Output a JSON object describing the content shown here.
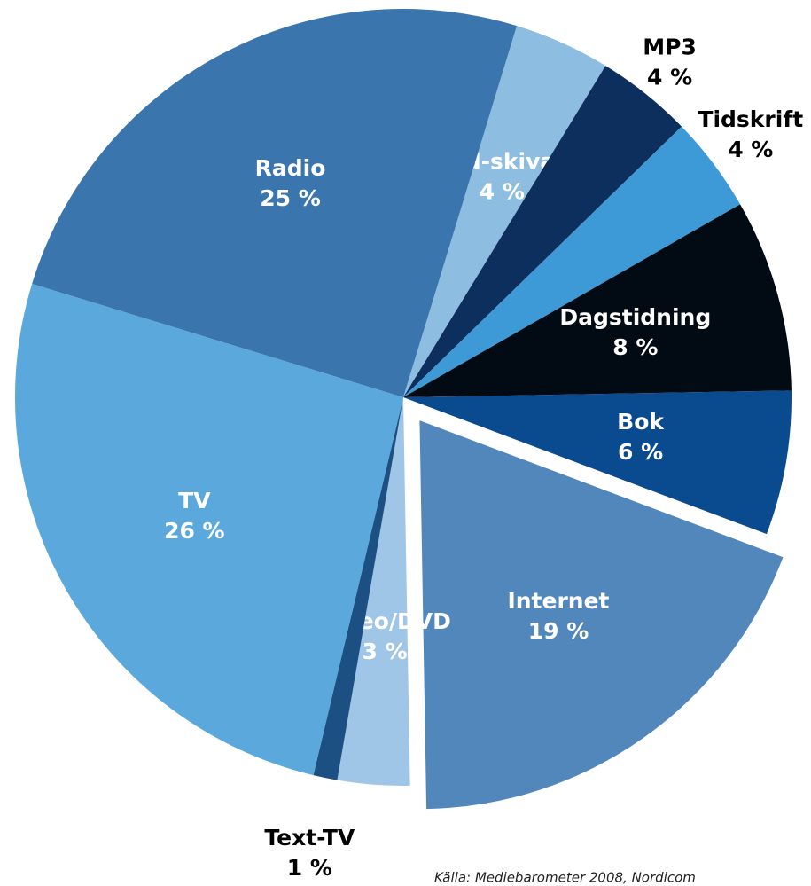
{
  "chart_data": {
    "type": "pie",
    "categories": [
      "Cd-skiva",
      "MP3",
      "Tidskrift",
      "Dagstidning",
      "Bok",
      "Internet",
      "Video/DVD",
      "Text-TV",
      "TV",
      "Radio"
    ],
    "values": [
      4,
      4,
      4,
      8,
      6,
      19,
      3,
      1,
      26,
      25
    ],
    "value_labels": [
      "4 %",
      "4 %",
      "4 %",
      "8 %",
      "6 %",
      "19 %",
      "3 %",
      "1 %",
      "26 %",
      "25 %"
    ],
    "colors": [
      "#8dbde0",
      "#0d2f5e",
      "#3d9ad6",
      "#020a14",
      "#0a4a8e",
      "#5287bc",
      "#9fc6e6",
      "#1c4f82",
      "#5aa8dc",
      "#3a75ad"
    ],
    "source": "Källa: Mediebarometer 2008, Nordicom"
  }
}
